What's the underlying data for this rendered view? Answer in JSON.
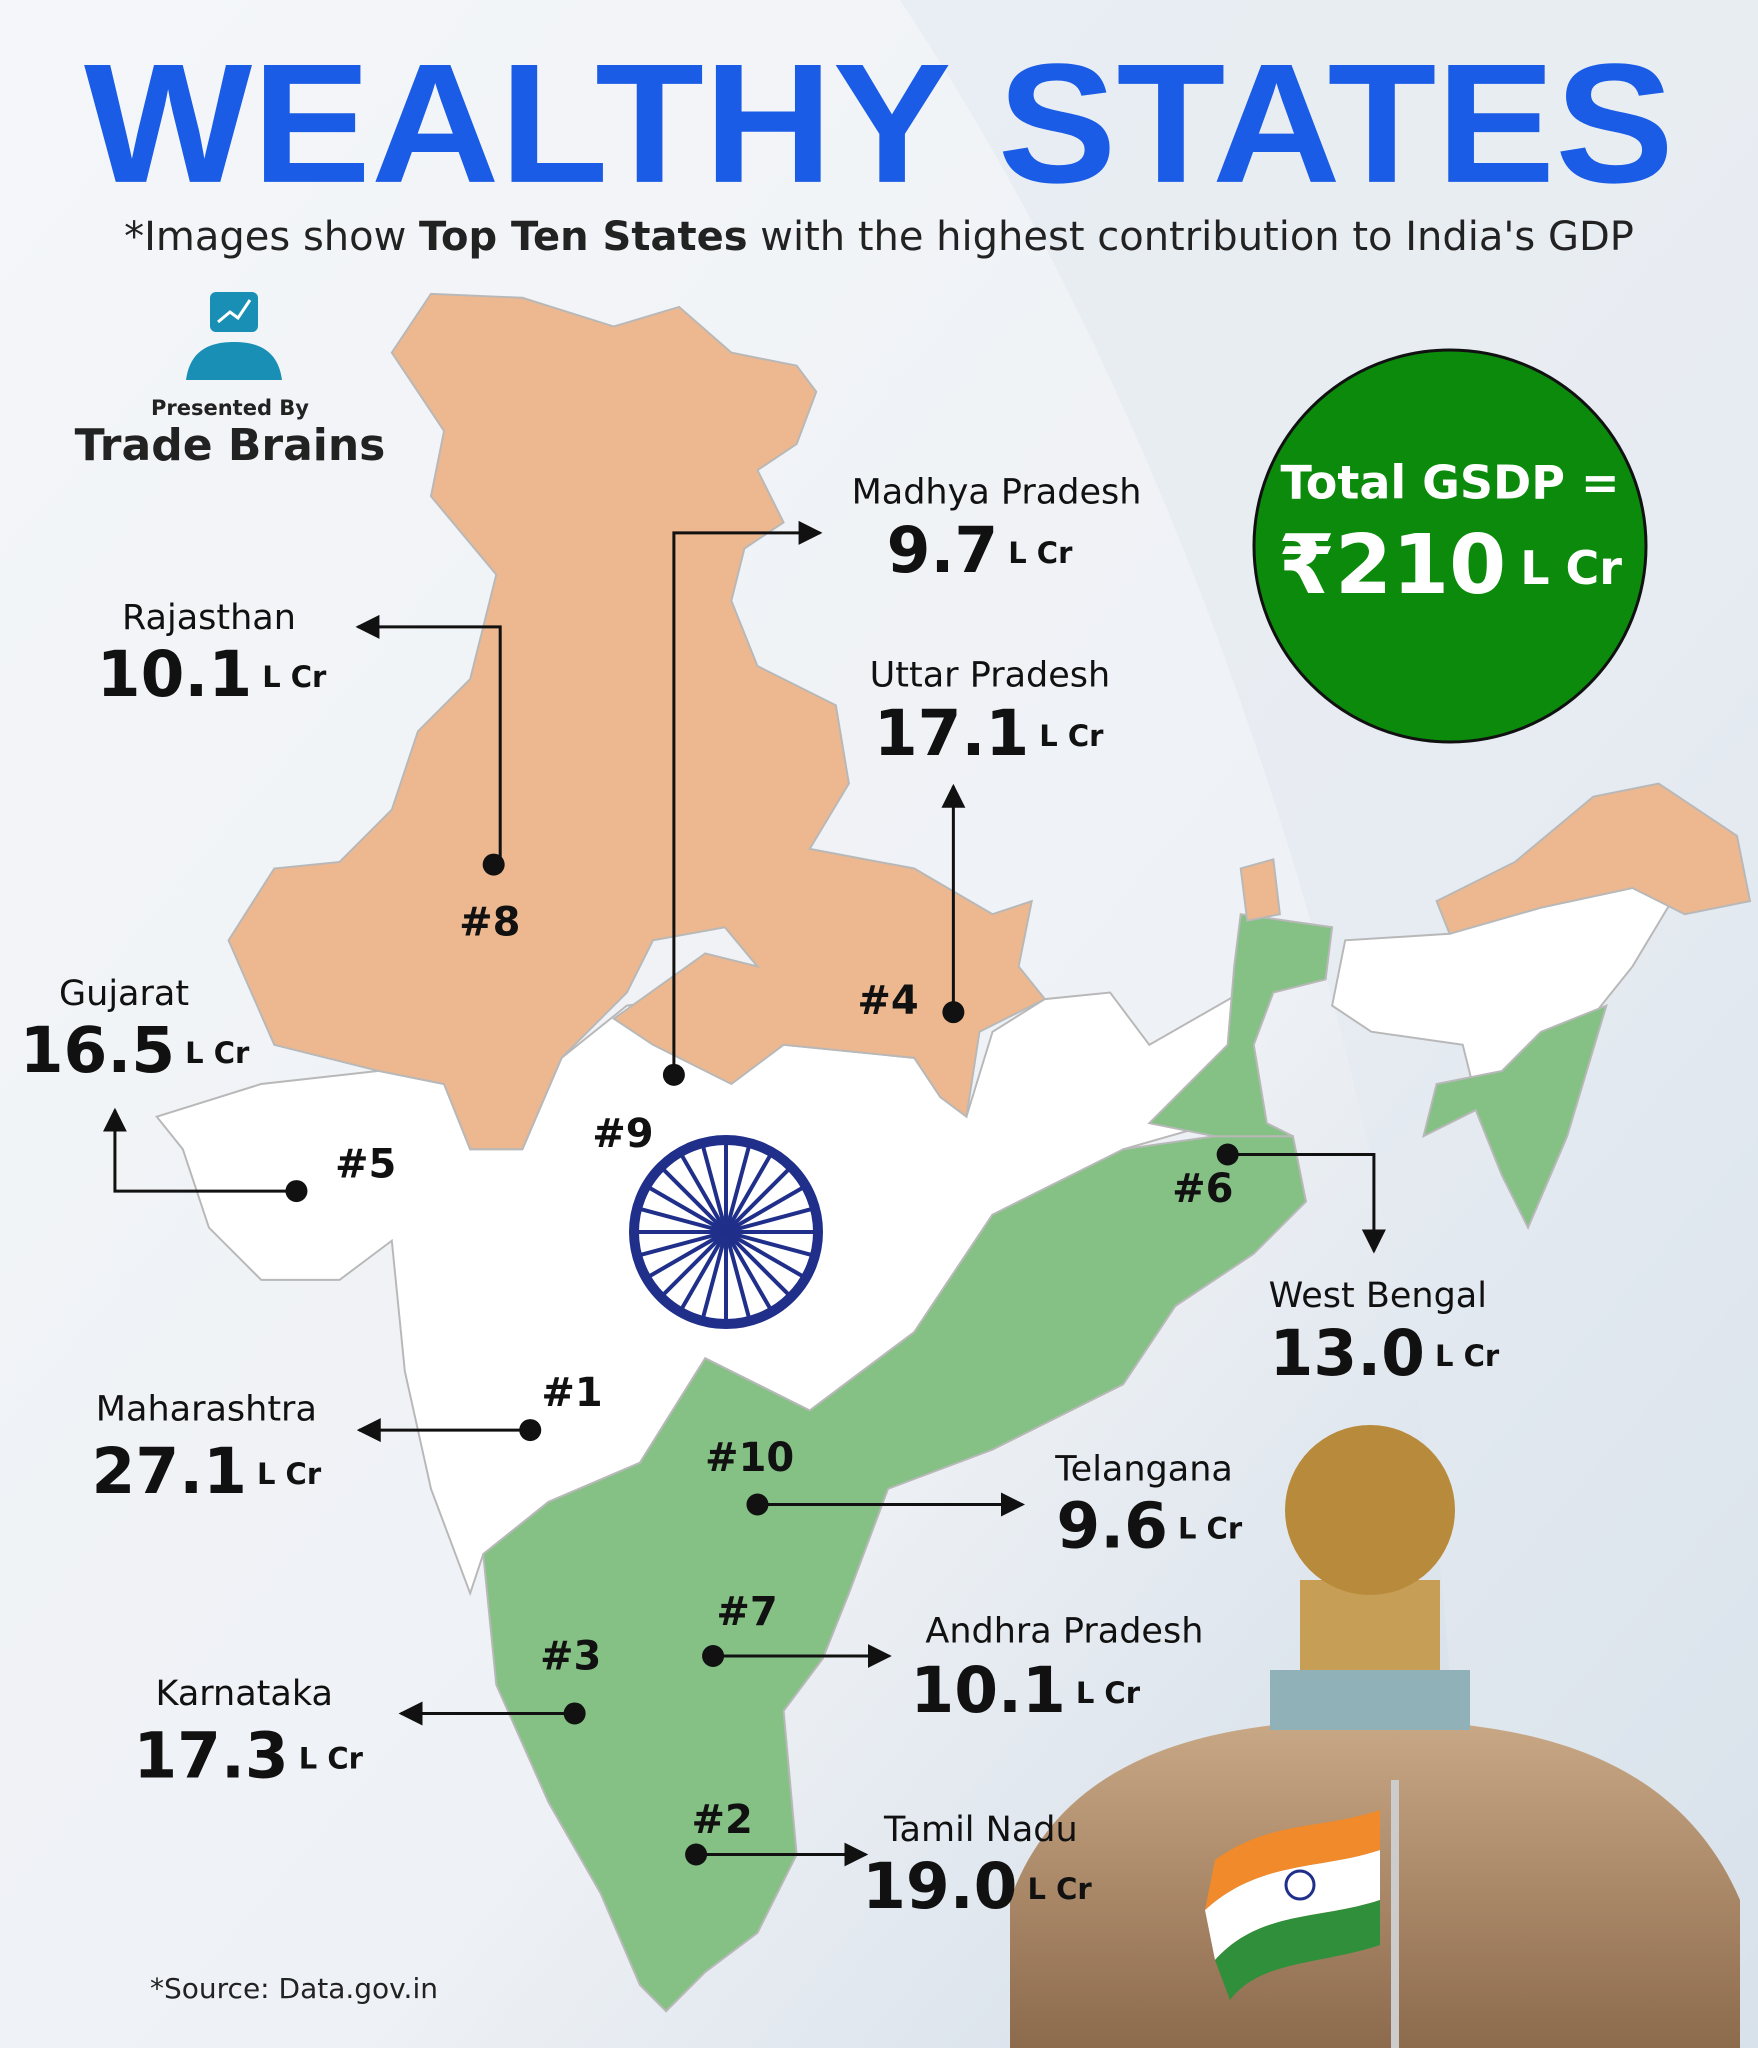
{
  "header": {
    "title": "WEALTHY STATES",
    "subtitle": [
      "*Images show ",
      "Top Ten States",
      " with the highest contribution to India's GDP"
    ]
  },
  "presenter": {
    "caption": "Presented By",
    "name": "Trade Brains"
  },
  "total": {
    "label": "Total GSDP =",
    "value": "₹210",
    "unit": "L Cr"
  },
  "states": [
    {
      "rank": "#1",
      "name": "Maharashtra",
      "value": "27.1",
      "unit": "L Cr"
    },
    {
      "rank": "#2",
      "name": "Tamil Nadu",
      "value": "19.0",
      "unit": "L Cr"
    },
    {
      "rank": "#3",
      "name": "Karnataka",
      "value": "17.3",
      "unit": "L Cr"
    },
    {
      "rank": "#4",
      "name": "Uttar Pradesh",
      "value": "17.1",
      "unit": "L Cr"
    },
    {
      "rank": "#5",
      "name": "Gujarat",
      "value": "16.5",
      "unit": "L Cr"
    },
    {
      "rank": "#6",
      "name": "West Bengal",
      "value": "13.0",
      "unit": "L Cr"
    },
    {
      "rank": "#7",
      "name": "Andhra Pradesh",
      "value": "10.1",
      "unit": "L Cr"
    },
    {
      "rank": "#8",
      "name": "Rajasthan",
      "value": "10.1",
      "unit": "L Cr"
    },
    {
      "rank": "#9",
      "name": "Madhya Pradesh",
      "value": "9.7",
      "unit": "L Cr"
    },
    {
      "rank": "#10",
      "name": "Telangana",
      "value": "9.6",
      "unit": "L Cr"
    }
  ],
  "source": "*Source: Data.gov.in"
}
